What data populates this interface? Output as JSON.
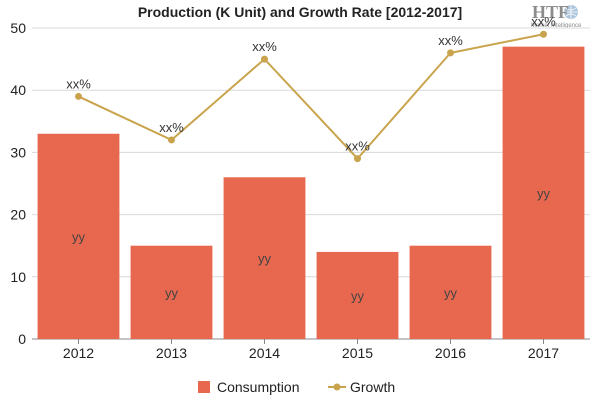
{
  "chart_data": {
    "type": "bar+line",
    "title": "Production (K Unit) and Growth Rate [2012-2017]",
    "categories": [
      "2012",
      "2013",
      "2014",
      "2015",
      "2016",
      "2017"
    ],
    "series": [
      {
        "name": "Consumption",
        "type": "bar",
        "values": [
          33,
          15,
          26,
          14,
          15,
          47
        ],
        "data_labels": [
          "yy",
          "yy",
          "yy",
          "yy",
          "yy",
          "yy"
        ],
        "color": "#E8684F"
      },
      {
        "name": "Growth",
        "type": "line",
        "values": [
          39,
          32,
          45,
          29,
          46,
          49
        ],
        "data_labels": [
          "xx%",
          "xx%",
          "xx%",
          "xx%",
          "xx%",
          "xx%"
        ],
        "color": "#C9A44C"
      }
    ],
    "ylim": [
      0,
      50
    ],
    "yticks": [
      0,
      10,
      20,
      30,
      40,
      50
    ],
    "grid": true,
    "legend": "bottom-center"
  },
  "logo": {
    "text": "HTF",
    "subtitle": "Market Intelligence"
  }
}
